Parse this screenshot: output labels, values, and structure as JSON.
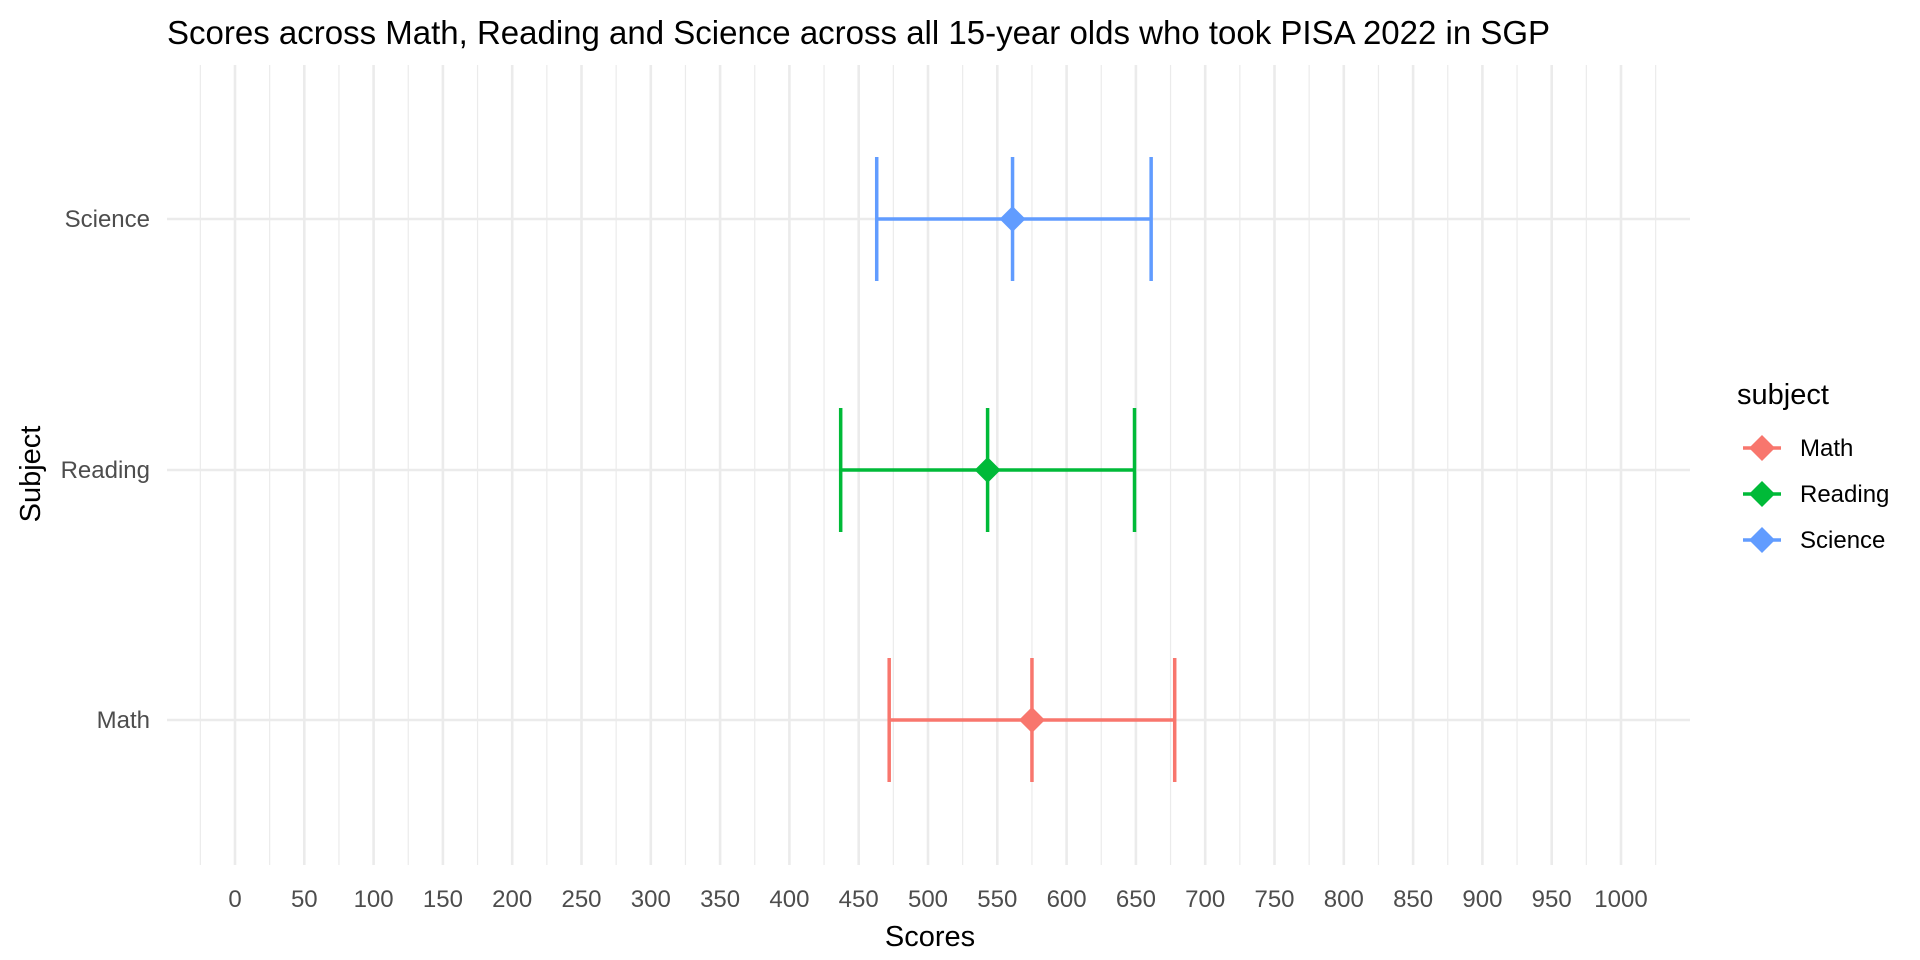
{
  "chart_data": {
    "type": "errorbar",
    "title": "Scores across Math, Reading and Science across all 15-year olds who took PISA 2022 in SGP",
    "xlabel": "Scores",
    "ylabel": "Subject",
    "xlim": [
      -25,
      1025
    ],
    "x_ticks": [
      0,
      50,
      100,
      150,
      200,
      250,
      300,
      350,
      400,
      450,
      500,
      550,
      600,
      650,
      700,
      750,
      800,
      850,
      900,
      950,
      1000
    ],
    "x_tick_labels": [
      "0",
      "50",
      "100",
      "150",
      "200",
      "250",
      "300",
      "350",
      "400",
      "450",
      "500",
      "550",
      "600",
      "650",
      "700",
      "750",
      "800",
      "850",
      "900",
      "950",
      "1000"
    ],
    "categories": [
      "Math",
      "Reading",
      "Science"
    ],
    "grid": true,
    "legend": {
      "title": "subject",
      "position": "right"
    },
    "series": [
      {
        "name": "Math",
        "color": "#F8766D",
        "mean": 575,
        "low": 472,
        "high": 678
      },
      {
        "name": "Reading",
        "color": "#00BA38",
        "mean": 543,
        "low": 437,
        "high": 649
      },
      {
        "name": "Science",
        "color": "#619CFF",
        "mean": 561,
        "low": 463,
        "high": 661
      }
    ]
  }
}
